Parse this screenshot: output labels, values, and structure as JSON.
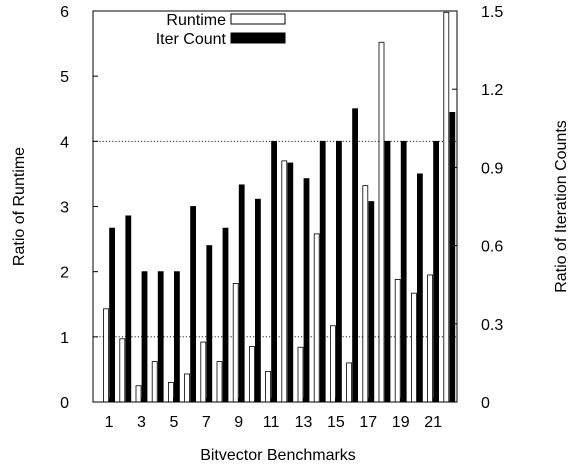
{
  "chart_data": {
    "type": "bar",
    "xlabel": "Bitvector Benchmarks",
    "ylabel_left": "Ratio of Runtime",
    "ylabel_right": "Ratio of Iteration Counts",
    "ylim_left": [
      0,
      6
    ],
    "ylim_right": [
      0,
      1.5
    ],
    "yticks_left": [
      "0",
      "1",
      "2",
      "3",
      "4",
      "5",
      "6"
    ],
    "yticks_right": [
      "0",
      "0.3",
      "0.6",
      "0.9",
      "1.2",
      "1.5"
    ],
    "xtick_labels": [
      "1",
      "3",
      "5",
      "7",
      "9",
      "11",
      "13",
      "15",
      "17",
      "19",
      "21"
    ],
    "xtick_categories": [
      1,
      3,
      5,
      7,
      9,
      11,
      13,
      15,
      17,
      19,
      21
    ],
    "categories": [
      1,
      2,
      3,
      4,
      5,
      6,
      7,
      8,
      9,
      10,
      11,
      12,
      13,
      14,
      15,
      16,
      17,
      18,
      19,
      20,
      21,
      22
    ],
    "grid": "dotted reference lines at y=1 and y=4 (left axis)",
    "legend_placement": "top-center",
    "series": [
      {
        "name": "Runtime",
        "axis": "left",
        "color": "#ffffff",
        "values": [
          1.43,
          0.97,
          0.25,
          0.62,
          0.3,
          0.43,
          0.92,
          0.62,
          1.82,
          0.85,
          0.47,
          3.7,
          0.84,
          2.58,
          1.17,
          0.6,
          3.32,
          5.52,
          1.88,
          1.67,
          1.95,
          5.98
        ]
      },
      {
        "name": "Iter Count",
        "axis": "right",
        "color": "#000000",
        "values": [
          0.667,
          0.714,
          0.5,
          0.5,
          0.5,
          0.75,
          0.6,
          0.667,
          0.833,
          0.778,
          1.0,
          0.917,
          0.857,
          1.0,
          1.0,
          1.125,
          0.769,
          1.0,
          1.0,
          0.875,
          1.0,
          1.111
        ]
      }
    ]
  }
}
